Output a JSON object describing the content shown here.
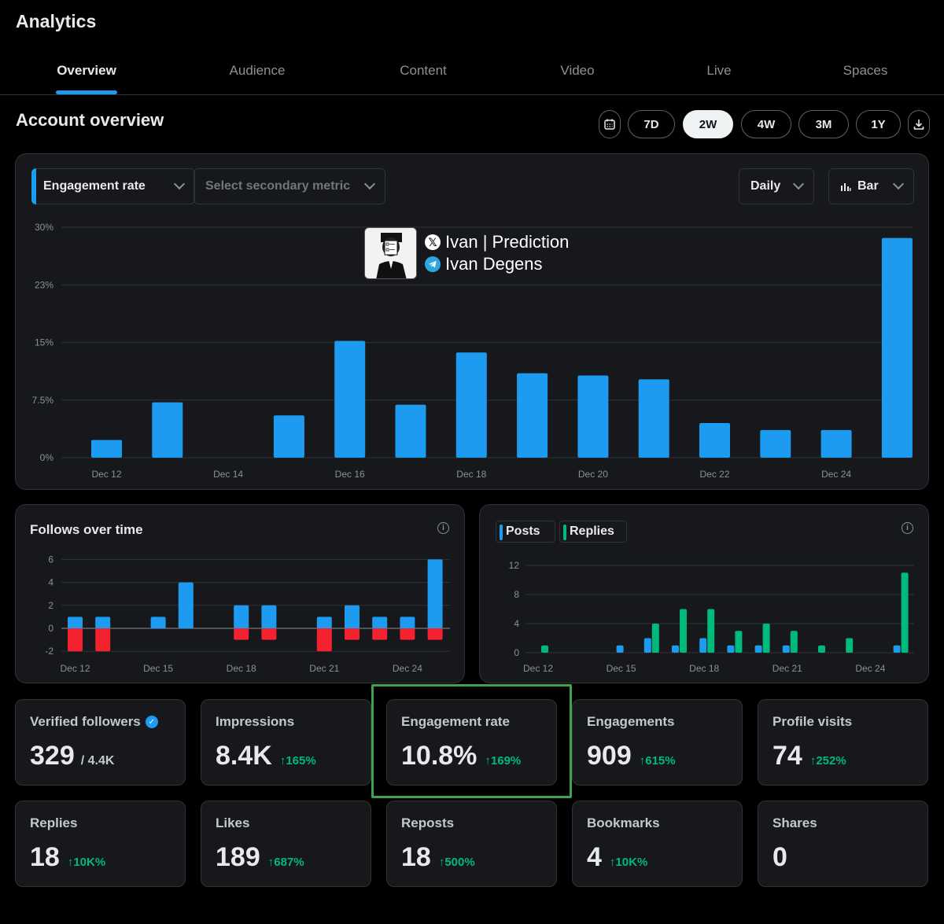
{
  "app": {
    "title": "Analytics"
  },
  "tabs": [
    {
      "label": "Overview",
      "active": true
    },
    {
      "label": "Audience",
      "active": false
    },
    {
      "label": "Content",
      "active": false
    },
    {
      "label": "Video",
      "active": false
    },
    {
      "label": "Live",
      "active": false
    },
    {
      "label": "Spaces",
      "active": false
    }
  ],
  "overview": {
    "title": "Account overview",
    "calendar_icon": "calendar-icon",
    "download_icon": "download-icon",
    "ranges": [
      {
        "label": "7D",
        "selected": false
      },
      {
        "label": "2W",
        "selected": true
      },
      {
        "label": "4W",
        "selected": false
      },
      {
        "label": "3M",
        "selected": false
      },
      {
        "label": "1Y",
        "selected": false
      }
    ]
  },
  "main_chart_controls": {
    "primary_metric": "Engagement rate",
    "secondary_metric_placeholder": "Select secondary metric",
    "interval": "Daily",
    "chart_type": "Bar",
    "chart_type_icon": "bar-chart-icon"
  },
  "overlay": {
    "x_handle": "Ivan | Prediction",
    "telegram_handle": "Ivan Degens"
  },
  "colors": {
    "accent_blue": "#1d9bf0",
    "negative_red": "#f4212e",
    "replies_green": "#00ba7c",
    "positive_delta": "#00ba7c",
    "highlight_border": "#3fa34d"
  },
  "chart_data": [
    {
      "type": "bar",
      "title": "",
      "xlabel": "",
      "ylabel": "",
      "ylim": [
        0,
        30
      ],
      "y_ticks": [
        "0%",
        "7.5%",
        "15%",
        "23%",
        "30%"
      ],
      "y_tick_values": [
        0,
        7.5,
        15,
        22.5,
        30
      ],
      "x_tick_labels": [
        "Dec 12",
        "Dec 14",
        "Dec 16",
        "Dec 18",
        "Dec 20",
        "Dec 22",
        "Dec 24"
      ],
      "categories": [
        "Dec 12",
        "Dec 13",
        "Dec 14",
        "Dec 15",
        "Dec 16",
        "Dec 17",
        "Dec 18",
        "Dec 19",
        "Dec 20",
        "Dec 21",
        "Dec 22",
        "Dec 23",
        "Dec 24",
        "Dec 25"
      ],
      "series": [
        {
          "values": [
            2.3,
            7.2,
            0,
            5.5,
            15.2,
            6.9,
            13.7,
            11.0,
            10.7,
            10.2,
            4.5,
            3.6,
            3.6,
            28.6
          ],
          "color": "#1d9bf0"
        }
      ],
      "grid": true
    },
    {
      "type": "bar",
      "title": "Follows over time",
      "xlabel": "",
      "ylabel": "",
      "ylim": [
        -2,
        6
      ],
      "y_ticks": [
        "6",
        "4",
        "2",
        "0",
        "-2"
      ],
      "x_tick_labels": [
        "Dec 12",
        "Dec 15",
        "Dec 18",
        "Dec 21",
        "Dec 24"
      ],
      "categories": [
        "Dec 12",
        "Dec 13",
        "Dec 14",
        "Dec 15",
        "Dec 16",
        "Dec 17",
        "Dec 18",
        "Dec 19",
        "Dec 20",
        "Dec 21",
        "Dec 22",
        "Dec 23",
        "Dec 24",
        "Dec 25"
      ],
      "series": [
        {
          "name": "follows",
          "values": [
            1,
            1,
            0,
            1,
            4,
            0,
            2,
            2,
            0,
            1,
            2,
            1,
            1,
            6
          ],
          "color": "#1d9bf0"
        },
        {
          "name": "unfollows",
          "values": [
            -2,
            -2,
            0,
            0,
            0,
            0,
            -1,
            -1,
            0,
            -2,
            -1,
            -1,
            -1,
            -1
          ],
          "color": "#f4212e"
        }
      ],
      "grid": true
    },
    {
      "type": "bar",
      "title": "",
      "legend": [
        "Posts",
        "Replies"
      ],
      "xlabel": "",
      "ylabel": "",
      "ylim": [
        0,
        12
      ],
      "y_ticks": [
        "12",
        "8",
        "4",
        "0"
      ],
      "x_tick_labels": [
        "Dec 12",
        "Dec 15",
        "Dec 18",
        "Dec 21",
        "Dec 24"
      ],
      "categories": [
        "Dec 12",
        "Dec 13",
        "Dec 14",
        "Dec 15",
        "Dec 16",
        "Dec 17",
        "Dec 18",
        "Dec 19",
        "Dec 20",
        "Dec 21",
        "Dec 22",
        "Dec 23",
        "Dec 24",
        "Dec 25"
      ],
      "series": [
        {
          "name": "Posts",
          "values": [
            0,
            0,
            0,
            1,
            2,
            1,
            2,
            1,
            1,
            1,
            0,
            0,
            0,
            1
          ],
          "color": "#1d9bf0"
        },
        {
          "name": "Replies",
          "values": [
            1,
            0,
            0,
            0,
            4,
            6,
            6,
            3,
            4,
            3,
            1,
            2,
            0,
            11
          ],
          "color": "#00ba7c"
        }
      ],
      "grid": true
    }
  ],
  "follows": {
    "title": "Follows over time",
    "info_icon": "info-icon"
  },
  "posts_replies": {
    "posts_label": "Posts",
    "replies_label": "Replies",
    "info_icon": "info-icon"
  },
  "metrics": [
    {
      "label": "Verified followers",
      "value": "329",
      "sub": "/ 4.4K",
      "delta": "",
      "verified_icon": "verified-badge-icon"
    },
    {
      "label": "Impressions",
      "value": "8.4K",
      "sub": "",
      "delta": "↑165%"
    },
    {
      "label": "Engagement rate",
      "value": "10.8%",
      "sub": "",
      "delta": "↑169%",
      "highlighted": true
    },
    {
      "label": "Engagements",
      "value": "909",
      "sub": "",
      "delta": "↑615%"
    },
    {
      "label": "Profile visits",
      "value": "74",
      "sub": "",
      "delta": "↑252%"
    },
    {
      "label": "Replies",
      "value": "18",
      "sub": "",
      "delta": "↑10K%"
    },
    {
      "label": "Likes",
      "value": "189",
      "sub": "",
      "delta": "↑687%"
    },
    {
      "label": "Reposts",
      "value": "18",
      "sub": "",
      "delta": "↑500%"
    },
    {
      "label": "Bookmarks",
      "value": "4",
      "sub": "",
      "delta": "↑10K%"
    },
    {
      "label": "Shares",
      "value": "0",
      "sub": "",
      "delta": ""
    }
  ]
}
